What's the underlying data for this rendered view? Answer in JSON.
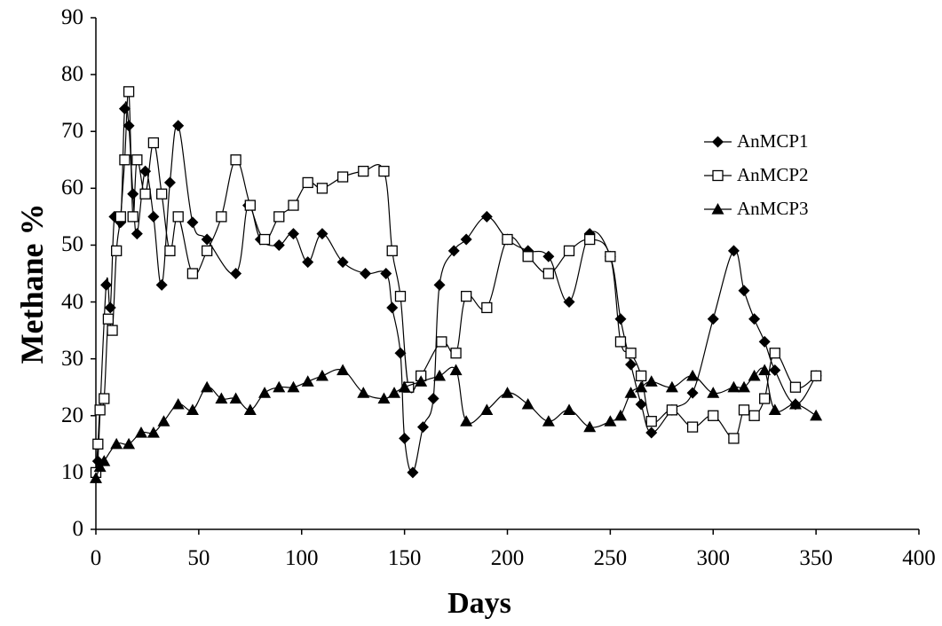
{
  "chart_data": {
    "type": "line",
    "title": "",
    "xlabel": "Days",
    "ylabel": "Methane %",
    "xlim": [
      0,
      400
    ],
    "ylim": [
      0,
      90
    ],
    "xticks": [
      0,
      50,
      100,
      150,
      200,
      250,
      300,
      350,
      400
    ],
    "yticks": [
      0,
      10,
      20,
      30,
      40,
      50,
      60,
      70,
      80,
      90
    ],
    "grid": false,
    "legend_position": "top-right",
    "series": [
      {
        "name": "AnMCP1",
        "marker": "diamond-filled",
        "color": "#000000",
        "points": [
          [
            1,
            12
          ],
          [
            5,
            43
          ],
          [
            7,
            39
          ],
          [
            9,
            55
          ],
          [
            12,
            54
          ],
          [
            14,
            74
          ],
          [
            16,
            71
          ],
          [
            18,
            59
          ],
          [
            20,
            52
          ],
          [
            24,
            63
          ],
          [
            28,
            55
          ],
          [
            32,
            43
          ],
          [
            36,
            61
          ],
          [
            40,
            71
          ],
          [
            47,
            54
          ],
          [
            54,
            51
          ],
          [
            68,
            45
          ],
          [
            74,
            57
          ],
          [
            80,
            51
          ],
          [
            89,
            50
          ],
          [
            96,
            52
          ],
          [
            103,
            47
          ],
          [
            110,
            52
          ],
          [
            120,
            47
          ],
          [
            131,
            45
          ],
          [
            141,
            45
          ],
          [
            144,
            39
          ],
          [
            148,
            31
          ],
          [
            150,
            16
          ],
          [
            154,
            10
          ],
          [
            159,
            18
          ],
          [
            164,
            23
          ],
          [
            167,
            43
          ],
          [
            174,
            49
          ],
          [
            180,
            51
          ],
          [
            190,
            55
          ],
          [
            200,
            51
          ],
          [
            210,
            49
          ],
          [
            220,
            48
          ],
          [
            230,
            40
          ],
          [
            240,
            52
          ],
          [
            250,
            48
          ],
          [
            255,
            37
          ],
          [
            260,
            29
          ],
          [
            265,
            22
          ],
          [
            270,
            17
          ],
          [
            280,
            21
          ],
          [
            290,
            24
          ],
          [
            300,
            37
          ],
          [
            310,
            49
          ],
          [
            315,
            42
          ],
          [
            320,
            37
          ],
          [
            325,
            33
          ],
          [
            330,
            28
          ],
          [
            340,
            22
          ],
          [
            350,
            27
          ]
        ]
      },
      {
        "name": "AnMCP2",
        "marker": "square-open",
        "color": "#000000",
        "points": [
          [
            0,
            10
          ],
          [
            1,
            15
          ],
          [
            2,
            21
          ],
          [
            4,
            23
          ],
          [
            6,
            37
          ],
          [
            8,
            35
          ],
          [
            10,
            49
          ],
          [
            12,
            55
          ],
          [
            14,
            65
          ],
          [
            16,
            77
          ],
          [
            18,
            55
          ],
          [
            20,
            65
          ],
          [
            24,
            59
          ],
          [
            28,
            68
          ],
          [
            32,
            59
          ],
          [
            36,
            49
          ],
          [
            40,
            55
          ],
          [
            47,
            45
          ],
          [
            54,
            49
          ],
          [
            61,
            55
          ],
          [
            68,
            65
          ],
          [
            75,
            57
          ],
          [
            82,
            51
          ],
          [
            89,
            55
          ],
          [
            96,
            57
          ],
          [
            103,
            61
          ],
          [
            110,
            60
          ],
          [
            120,
            62
          ],
          [
            130,
            63
          ],
          [
            140,
            63
          ],
          [
            144,
            49
          ],
          [
            148,
            41
          ],
          [
            152,
            25
          ],
          [
            158,
            27
          ],
          [
            168,
            33
          ],
          [
            175,
            31
          ],
          [
            180,
            41
          ],
          [
            190,
            39
          ],
          [
            200,
            51
          ],
          [
            210,
            48
          ],
          [
            220,
            45
          ],
          [
            230,
            49
          ],
          [
            240,
            51
          ],
          [
            250,
            48
          ],
          [
            255,
            33
          ],
          [
            260,
            31
          ],
          [
            265,
            27
          ],
          [
            270,
            19
          ],
          [
            280,
            21
          ],
          [
            290,
            18
          ],
          [
            300,
            20
          ],
          [
            310,
            16
          ],
          [
            315,
            21
          ],
          [
            320,
            20
          ],
          [
            325,
            23
          ],
          [
            330,
            31
          ],
          [
            340,
            25
          ],
          [
            350,
            27
          ]
        ]
      },
      {
        "name": "AnMCP3",
        "marker": "triangle-filled",
        "color": "#000000",
        "points": [
          [
            0,
            9
          ],
          [
            2,
            11
          ],
          [
            4,
            12
          ],
          [
            10,
            15
          ],
          [
            16,
            15
          ],
          [
            22,
            17
          ],
          [
            28,
            17
          ],
          [
            33,
            19
          ],
          [
            40,
            22
          ],
          [
            47,
            21
          ],
          [
            54,
            25
          ],
          [
            61,
            23
          ],
          [
            68,
            23
          ],
          [
            75,
            21
          ],
          [
            82,
            24
          ],
          [
            89,
            25
          ],
          [
            96,
            25
          ],
          [
            103,
            26
          ],
          [
            110,
            27
          ],
          [
            120,
            28
          ],
          [
            130,
            24
          ],
          [
            140,
            23
          ],
          [
            145,
            24
          ],
          [
            150,
            25
          ],
          [
            158,
            26
          ],
          [
            167,
            27
          ],
          [
            175,
            28
          ],
          [
            180,
            19
          ],
          [
            190,
            21
          ],
          [
            200,
            24
          ],
          [
            210,
            22
          ],
          [
            220,
            19
          ],
          [
            230,
            21
          ],
          [
            240,
            18
          ],
          [
            250,
            19
          ],
          [
            255,
            20
          ],
          [
            260,
            24
          ],
          [
            265,
            25
          ],
          [
            270,
            26
          ],
          [
            280,
            25
          ],
          [
            290,
            27
          ],
          [
            300,
            24
          ],
          [
            310,
            25
          ],
          [
            315,
            25
          ],
          [
            320,
            27
          ],
          [
            325,
            28
          ],
          [
            330,
            21
          ],
          [
            340,
            22
          ],
          [
            350,
            20
          ]
        ]
      }
    ]
  }
}
